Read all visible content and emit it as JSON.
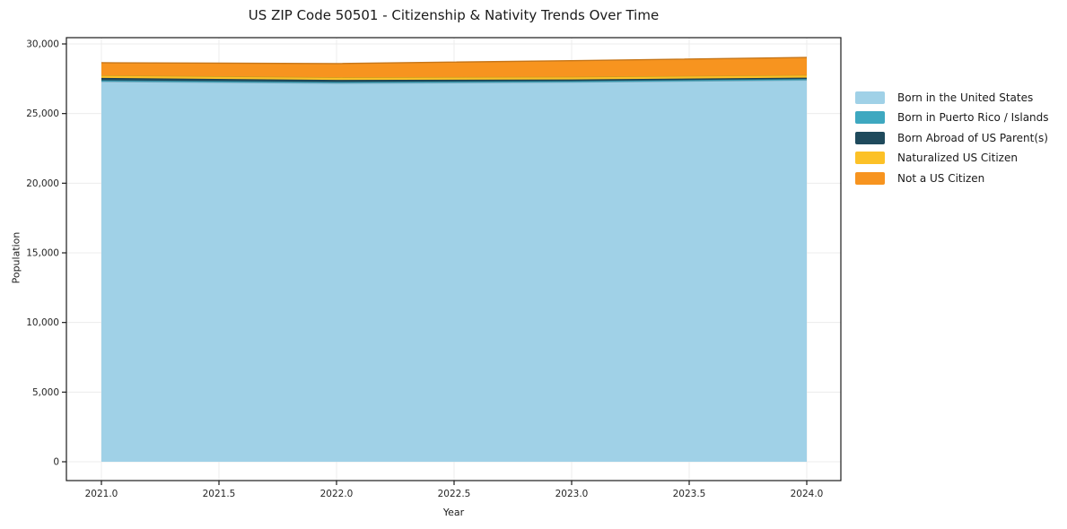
{
  "chart_data": {
    "type": "area",
    "stacked": true,
    "title": "US ZIP Code 50501 - Citizenship & Nativity Trends Over Time",
    "xlabel": "Year",
    "ylabel": "Population",
    "x": [
      2021,
      2022,
      2023,
      2024
    ],
    "series": [
      {
        "name": "Born in the United States",
        "color": "#a0d1e7",
        "values": [
          27300,
          27180,
          27250,
          27400
        ]
      },
      {
        "name": "Born in Puerto Rico / Islands",
        "color": "#3ea8c0",
        "values": [
          90,
          90,
          90,
          90
        ]
      },
      {
        "name": "Born Abroad of US Parent(s)",
        "color": "#1f4a5c",
        "values": [
          170,
          150,
          110,
          90
        ]
      },
      {
        "name": "Naturalized US Citizen",
        "color": "#fcc127",
        "values": [
          190,
          190,
          190,
          190
        ]
      },
      {
        "name": "Not a US Citizen",
        "color": "#f7941f",
        "values": [
          900,
          980,
          1160,
          1260
        ]
      }
    ],
    "x_ticks": {
      "values": [
        2021.0,
        2021.5,
        2022.0,
        2022.5,
        2023.0,
        2023.5,
        2024.0
      ],
      "labels": [
        "2021.0",
        "2021.5",
        "2022.0",
        "2022.5",
        "2023.0",
        "2023.5",
        "2024.0"
      ]
    },
    "y_ticks": {
      "values": [
        0,
        5000,
        10000,
        15000,
        20000,
        25000,
        30000
      ],
      "labels": [
        "0",
        "5,000",
        "10,000",
        "15,000",
        "20,000",
        "25,000",
        "30,000"
      ]
    },
    "grid": true,
    "legend_position": "right of plot, top",
    "colors": {
      "gridline": "#ececec",
      "spine": "#1a1a1a",
      "tick_label": "#262626",
      "background": "#ffffff"
    }
  }
}
